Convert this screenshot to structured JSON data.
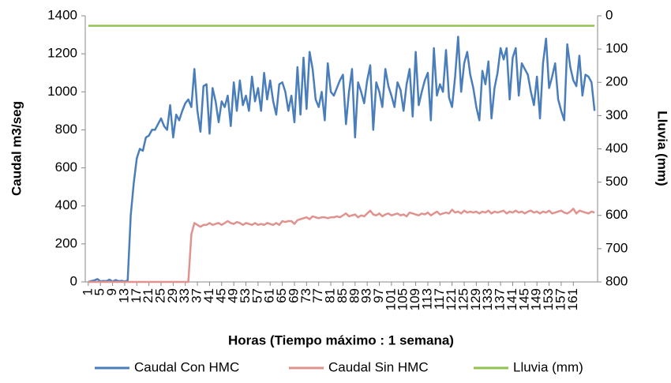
{
  "chart_data": {
    "type": "line",
    "x_label": "Horas (Tiempo máximo : 1 semana)",
    "y_label": "Caudal m3/seg",
    "y2_label": "Lluvia (mm)",
    "x": [
      1,
      2,
      3,
      4,
      5,
      6,
      7,
      8,
      9,
      10,
      11,
      12,
      13,
      14,
      15,
      16,
      17,
      18,
      19,
      20,
      21,
      22,
      23,
      24,
      25,
      26,
      27,
      28,
      29,
      30,
      31,
      32,
      33,
      34,
      35,
      36,
      37,
      38,
      39,
      40,
      41,
      42,
      43,
      44,
      45,
      46,
      47,
      48,
      49,
      50,
      51,
      52,
      53,
      54,
      55,
      56,
      57,
      58,
      59,
      60,
      61,
      62,
      63,
      64,
      65,
      66,
      67,
      68,
      69,
      70,
      71,
      72,
      73,
      74,
      75,
      76,
      77,
      78,
      79,
      80,
      81,
      82,
      83,
      84,
      85,
      86,
      87,
      88,
      89,
      90,
      91,
      92,
      93,
      94,
      95,
      96,
      97,
      98,
      99,
      100,
      101,
      102,
      103,
      104,
      105,
      106,
      107,
      108,
      109,
      110,
      111,
      112,
      113,
      114,
      115,
      116,
      117,
      118,
      119,
      120,
      121,
      122,
      123,
      124,
      125,
      126,
      127,
      128,
      129,
      130,
      131,
      132,
      133,
      134,
      135,
      136,
      137,
      138,
      139,
      140,
      141,
      142,
      143,
      144,
      145,
      146,
      147,
      148,
      149,
      150,
      151,
      152,
      153,
      154,
      155,
      156,
      157,
      158,
      159,
      160,
      161,
      162,
      163,
      164,
      165,
      166,
      167,
      168
    ],
    "xlim": [
      0,
      169
    ],
    "xticks": [
      1,
      5,
      9,
      13,
      17,
      21,
      25,
      29,
      33,
      37,
      41,
      45,
      49,
      53,
      57,
      61,
      65,
      69,
      73,
      77,
      81,
      85,
      89,
      93,
      97,
      101,
      105,
      109,
      113,
      117,
      121,
      125,
      129,
      133,
      137,
      141,
      145,
      149,
      153,
      157,
      161
    ],
    "ylim": [
      0,
      1400
    ],
    "yticks": [
      0,
      200,
      400,
      600,
      800,
      1000,
      1200,
      1400
    ],
    "y2lim": [
      800,
      0
    ],
    "y2ticks": [
      0,
      100,
      200,
      300,
      400,
      500,
      600,
      700,
      800
    ],
    "legend": "bottom",
    "series": [
      {
        "name": "Caudal Con HMC",
        "color": "#4a7ebb",
        "values": [
          0,
          5,
          8,
          15,
          3,
          5,
          4,
          12,
          2,
          10,
          4,
          6,
          2,
          8,
          350,
          520,
          650,
          700,
          690,
          760,
          770,
          800,
          800,
          830,
          860,
          820,
          800,
          930,
          760,
          880,
          850,
          900,
          940,
          960,
          920,
          1120,
          900,
          790,
          1030,
          1040,
          780,
          1020,
          950,
          840,
          950,
          920,
          980,
          820,
          1050,
          900,
          1060,
          930,
          980,
          900,
          1080,
          950,
          1020,
          900,
          1100,
          960,
          1060,
          950,
          880,
          1040,
          1050,
          1000,
          900,
          980,
          840,
          1130,
          880,
          1180,
          910,
          1210,
          1120,
          960,
          920,
          1000,
          850,
          1150,
          1000,
          980,
          1020,
          1060,
          1090,
          830,
          1000,
          1120,
          760,
          1050,
          1000,
          940,
          1060,
          1140,
          800,
          1050,
          1000,
          920,
          1120,
          1030,
          980,
          920,
          1050,
          1010,
          900,
          1040,
          1120,
          870,
          1210,
          930,
          1000,
          1060,
          1100,
          850,
          1230,
          980,
          1040,
          1000,
          1220,
          970,
          920,
          1080,
          1290,
          1000,
          1150,
          1210,
          1090,
          1020,
          920,
          850,
          1110,
          1040,
          1160,
          860,
          1020,
          1100,
          1230,
          1170,
          1230,
          960,
          1180,
          1230,
          980,
          1150,
          1120,
          1090,
          1000,
          930,
          1080,
          860,
          1150,
          1280,
          1020,
          1080,
          1150,
          960,
          900,
          850,
          1250,
          1130,
          1060,
          1030,
          1190,
          980,
          1090,
          1080,
          1050,
          900
        ]
      },
      {
        "name": "Caudal Sin HMC",
        "color": "#e0928e",
        "values": [
          0,
          0,
          0,
          0,
          0,
          0,
          0,
          0,
          0,
          0,
          0,
          0,
          0,
          0,
          0,
          0,
          0,
          0,
          0,
          0,
          0,
          0,
          0,
          0,
          0,
          0,
          0,
          0,
          0,
          0,
          0,
          0,
          0,
          0,
          250,
          310,
          300,
          290,
          300,
          300,
          310,
          300,
          305,
          310,
          300,
          310,
          320,
          310,
          305,
          315,
          310,
          300,
          310,
          305,
          300,
          310,
          300,
          305,
          300,
          310,
          305,
          300,
          310,
          300,
          320,
          315,
          320,
          320,
          305,
          325,
          330,
          335,
          340,
          330,
          345,
          340,
          335,
          340,
          340,
          335,
          340,
          340,
          345,
          340,
          350,
          360,
          345,
          350,
          355,
          340,
          350,
          345,
          360,
          375,
          355,
          350,
          360,
          345,
          355,
          360,
          350,
          355,
          360,
          350,
          355,
          345,
          365,
          360,
          355,
          350,
          360,
          355,
          365,
          350,
          360,
          370,
          355,
          360,
          365,
          360,
          380,
          365,
          370,
          360,
          375,
          365,
          370,
          365,
          370,
          360,
          370,
          365,
          375,
          360,
          370,
          365,
          370,
          375,
          360,
          370,
          365,
          375,
          365,
          370,
          360,
          370,
          375,
          365,
          370,
          360,
          370,
          365,
          375,
          360,
          365,
          370,
          375,
          365,
          360,
          370,
          385,
          360,
          375,
          370,
          365,
          360,
          370,
          365
        ]
      },
      {
        "name": "Lluvia (mm)",
        "color": "#92c24f",
        "axis": "y2",
        "values": [
          30,
          30,
          30,
          30,
          30,
          30,
          30,
          30,
          30,
          30,
          30,
          30,
          30,
          30,
          30,
          30,
          30,
          30,
          30,
          30,
          30,
          30,
          30,
          30,
          30,
          30,
          30,
          30,
          30,
          30,
          30,
          30,
          30,
          30,
          30,
          30,
          30,
          30,
          30,
          30,
          30,
          30,
          30,
          30,
          30,
          30,
          30,
          30,
          30,
          30,
          30,
          30,
          30,
          30,
          30,
          30,
          30,
          30,
          30,
          30,
          30,
          30,
          30,
          30,
          30,
          30,
          30,
          30,
          30,
          30,
          30,
          30,
          30,
          30,
          30,
          30,
          30,
          30,
          30,
          30,
          30,
          30,
          30,
          30,
          30,
          30,
          30,
          30,
          30,
          30,
          30,
          30,
          30,
          30,
          30,
          30,
          30,
          30,
          30,
          30,
          30,
          30,
          30,
          30,
          30,
          30,
          30,
          30,
          30,
          30,
          30,
          30,
          30,
          30,
          30,
          30,
          30,
          30,
          30,
          30,
          30,
          30,
          30,
          30,
          30,
          30,
          30,
          30,
          30,
          30,
          30,
          30,
          30,
          30,
          30,
          30,
          30,
          30,
          30,
          30,
          30,
          30,
          30,
          30,
          30,
          30,
          30,
          30,
          30,
          30,
          30,
          30,
          30,
          30,
          30,
          30,
          30,
          30,
          30,
          30,
          30,
          30,
          30,
          30,
          30,
          30,
          30,
          30
        ]
      }
    ]
  }
}
